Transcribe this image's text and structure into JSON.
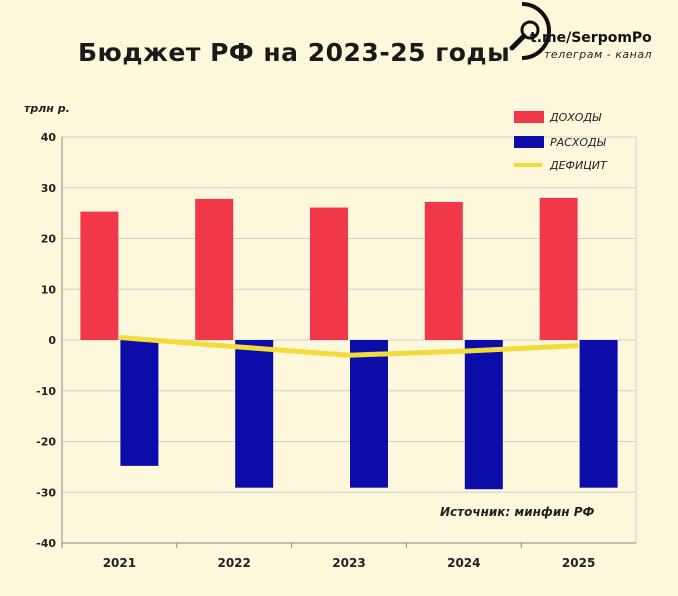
{
  "title": "Бюджет РФ на 2023-25 годы",
  "logo": {
    "handle": "t.me/SerpomPo",
    "subtitle": "телеграм - канал",
    "icon": "magnifier-icon"
  },
  "source_note": "Источник: минфин РФ",
  "colors": {
    "background": "#fdf8dc",
    "revenue": "#f0384a",
    "expense": "#0c0ca8",
    "deficit": "#f2dc3c",
    "grid": "#cfcfcf"
  },
  "chart_data": {
    "type": "bar",
    "ylabel": "трлн р.",
    "ylim": [
      -40,
      40
    ],
    "yticks": [
      40,
      30,
      20,
      10,
      0,
      -10,
      -20,
      -30,
      -40
    ],
    "categories": [
      "2021",
      "2022",
      "2023",
      "2024",
      "2025"
    ],
    "series": [
      {
        "name": "ДОХОДЫ",
        "type": "bar",
        "values": [
          25.3,
          27.8,
          26.1,
          27.2,
          28.0
        ]
      },
      {
        "name": "РАСХОДЫ",
        "type": "bar",
        "values": [
          -24.8,
          -29.1,
          -29.1,
          -29.4,
          -29.1
        ]
      },
      {
        "name": "ДЕФИЦИТ",
        "type": "line",
        "values": [
          0.5,
          -1.3,
          -3.0,
          -2.2,
          -1.1
        ]
      }
    ],
    "legend_position": "top-right",
    "grid": true
  }
}
